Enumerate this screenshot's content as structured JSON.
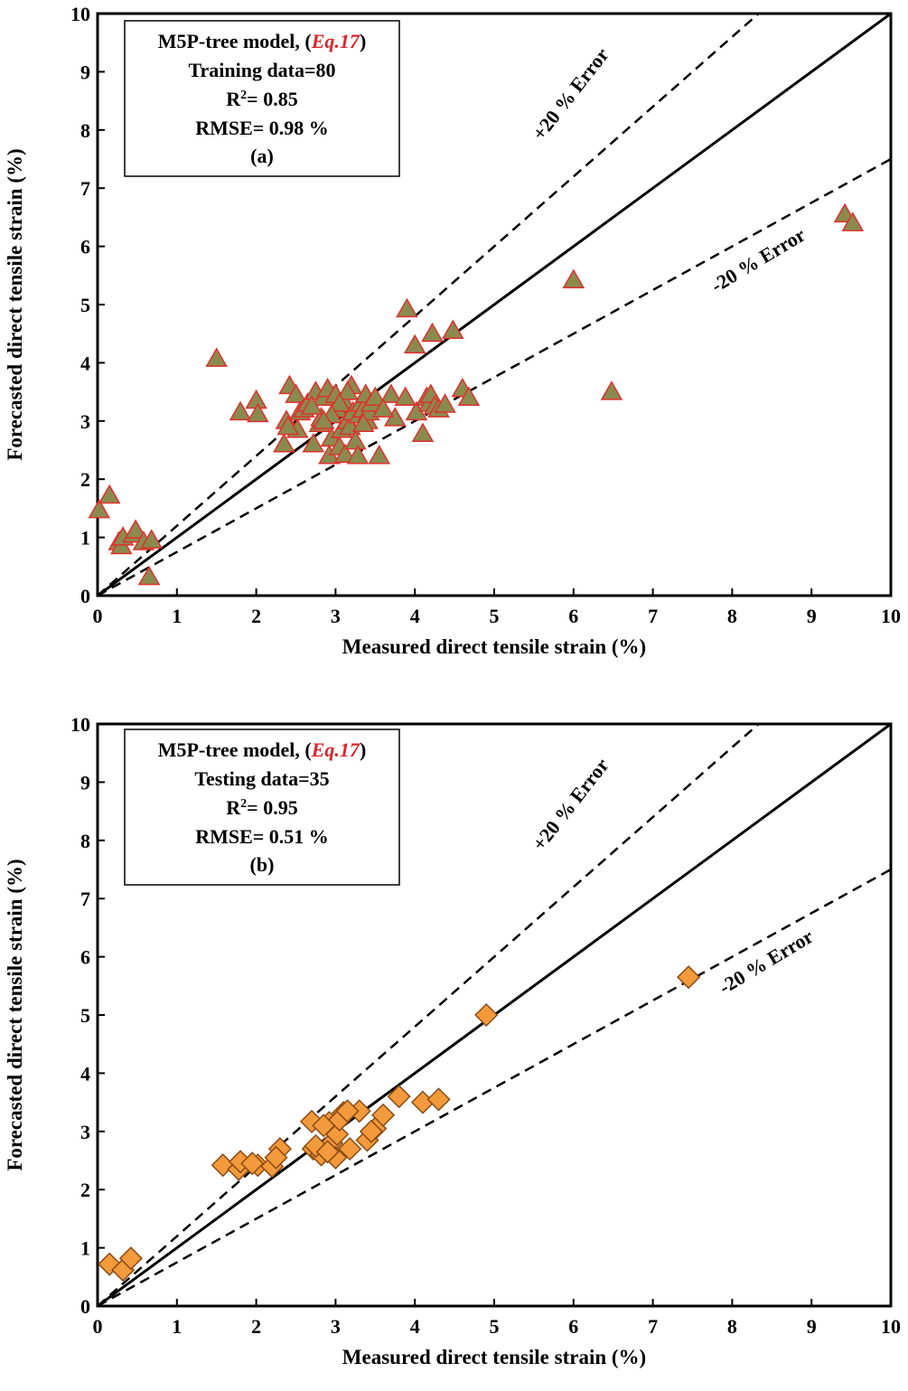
{
  "chart_data": [
    {
      "type": "scatter",
      "panel": "(a)",
      "xlabel": "Measured direct tensile strain (%)",
      "ylabel": "Forecasted direct tensile strain (%)",
      "xlim": [
        0,
        10
      ],
      "ylim": [
        0,
        10
      ],
      "xticks": [
        "0",
        "1",
        "2",
        "3",
        "4",
        "5",
        "6",
        "7",
        "8",
        "9",
        "10"
      ],
      "yticks": [
        "0",
        "1",
        "2",
        "3",
        "4",
        "5",
        "6",
        "7",
        "8",
        "9",
        "10"
      ],
      "legend": {
        "model": "M5P-tree model, (",
        "eq": "Eq.17",
        "close": ")",
        "data_label": "Training data=80",
        "r2_prefix": "R",
        "r2_sup": "2",
        "r2_value": "= 0.85",
        "rmse": "RMSE= 0.98 %",
        "panel": "(a)"
      },
      "lines": {
        "plus": "+20 % Error",
        "minus": "-20 % Error"
      },
      "marker": "triangle",
      "marker_fill": "#8b8a4e",
      "marker_stroke": "#e0302c",
      "points": [
        [
          0.02,
          1.47
        ],
        [
          0.15,
          1.72
        ],
        [
          0.27,
          0.92
        ],
        [
          0.3,
          0.85
        ],
        [
          0.32,
          1.0
        ],
        [
          0.45,
          1.05
        ],
        [
          0.48,
          1.12
        ],
        [
          0.58,
          0.92
        ],
        [
          0.68,
          0.95
        ],
        [
          0.65,
          0.32
        ],
        [
          1.5,
          4.07
        ],
        [
          1.8,
          3.15
        ],
        [
          2.0,
          3.35
        ],
        [
          2.02,
          3.12
        ],
        [
          2.35,
          2.6
        ],
        [
          2.38,
          3.0
        ],
        [
          2.42,
          3.6
        ],
        [
          2.5,
          3.45
        ],
        [
          2.52,
          2.85
        ],
        [
          2.55,
          3.15
        ],
        [
          2.6,
          3.2
        ],
        [
          2.65,
          3.3
        ],
        [
          2.72,
          2.6
        ],
        [
          2.75,
          3.5
        ],
        [
          2.8,
          2.95
        ],
        [
          2.82,
          3.05
        ],
        [
          2.85,
          3.4
        ],
        [
          2.9,
          3.55
        ],
        [
          2.92,
          2.4
        ],
        [
          2.95,
          2.7
        ],
        [
          3.0,
          3.45
        ],
        [
          3.02,
          3.2
        ],
        [
          3.05,
          2.55
        ],
        [
          3.08,
          2.85
        ],
        [
          3.1,
          3.35
        ],
        [
          3.12,
          2.42
        ],
        [
          3.15,
          3.0
        ],
        [
          3.18,
          2.9
        ],
        [
          3.2,
          3.6
        ],
        [
          3.22,
          3.15
        ],
        [
          3.25,
          2.65
        ],
        [
          3.28,
          2.4
        ],
        [
          3.3,
          3.1
        ],
        [
          3.32,
          3.3
        ],
        [
          3.35,
          3.2
        ],
        [
          3.38,
          3.45
        ],
        [
          3.4,
          3.0
        ],
        [
          3.42,
          3.15
        ],
        [
          3.45,
          3.3
        ],
        [
          3.5,
          3.4
        ],
        [
          3.55,
          2.4
        ],
        [
          3.7,
          3.45
        ],
        [
          3.75,
          3.05
        ],
        [
          3.88,
          3.4
        ],
        [
          3.9,
          4.92
        ],
        [
          4.0,
          4.3
        ],
        [
          4.02,
          3.15
        ],
        [
          4.1,
          2.78
        ],
        [
          4.15,
          3.4
        ],
        [
          4.18,
          3.3
        ],
        [
          4.2,
          3.45
        ],
        [
          4.22,
          4.5
        ],
        [
          4.25,
          3.25
        ],
        [
          4.3,
          3.2
        ],
        [
          4.38,
          3.28
        ],
        [
          4.48,
          4.55
        ],
        [
          4.6,
          3.55
        ],
        [
          4.68,
          3.4
        ],
        [
          6.0,
          5.42
        ],
        [
          6.48,
          3.5
        ],
        [
          9.42,
          6.55
        ],
        [
          9.52,
          6.4
        ],
        [
          3.6,
          3.2
        ],
        [
          2.4,
          2.9
        ],
        [
          3.15,
          3.5
        ],
        [
          2.7,
          3.25
        ],
        [
          3.05,
          3.3
        ],
        [
          2.95,
          3.1
        ],
        [
          3.35,
          2.95
        ],
        [
          2.85,
          3.0
        ]
      ]
    },
    {
      "type": "scatter",
      "panel": "(b)",
      "xlabel": "Measured direct tensile strain (%)",
      "ylabel": "Forecasted direct tensile strain (%)",
      "xlim": [
        0,
        10
      ],
      "ylim": [
        0,
        10
      ],
      "xticks": [
        "0",
        "1",
        "2",
        "3",
        "4",
        "5",
        "6",
        "7",
        "8",
        "9",
        "10"
      ],
      "yticks": [
        "0",
        "1",
        "2",
        "3",
        "4",
        "5",
        "6",
        "7",
        "8",
        "9",
        "10"
      ],
      "legend": {
        "model": "M5P-tree model, (",
        "eq": "Eq.17",
        "close": ")",
        "data_label": "Testing data=35",
        "r2_prefix": "R",
        "r2_sup": "2",
        "r2_value": "= 0.95",
        "rmse": "RMSE= 0.51 %",
        "panel": "(b)"
      },
      "lines": {
        "plus": "+20 % Error",
        "minus": "-20 % Error"
      },
      "marker": "diamond",
      "marker_fill": "#f39a3c",
      "marker_stroke": "#8a4a12",
      "points": [
        [
          0.15,
          0.72
        ],
        [
          0.32,
          0.62
        ],
        [
          0.42,
          0.82
        ],
        [
          1.58,
          2.42
        ],
        [
          1.78,
          2.35
        ],
        [
          1.8,
          2.48
        ],
        [
          2.02,
          2.42
        ],
        [
          2.2,
          2.4
        ],
        [
          2.3,
          2.7
        ],
        [
          2.7,
          3.17
        ],
        [
          2.72,
          2.7
        ],
        [
          2.82,
          2.6
        ],
        [
          2.92,
          3.15
        ],
        [
          2.95,
          2.8
        ],
        [
          3.0,
          2.55
        ],
        [
          3.02,
          2.95
        ],
        [
          3.1,
          3.32
        ],
        [
          3.18,
          2.7
        ],
        [
          3.3,
          3.35
        ],
        [
          3.4,
          2.85
        ],
        [
          3.5,
          3.05
        ],
        [
          3.6,
          3.28
        ],
        [
          3.8,
          3.6
        ],
        [
          4.1,
          3.5
        ],
        [
          4.3,
          3.55
        ],
        [
          4.9,
          5.0
        ],
        [
          7.45,
          5.65
        ],
        [
          2.85,
          3.1
        ],
        [
          3.05,
          3.2
        ],
        [
          2.75,
          2.75
        ],
        [
          3.45,
          3.0
        ],
        [
          2.25,
          2.55
        ],
        [
          1.95,
          2.45
        ],
        [
          3.15,
          3.35
        ],
        [
          2.9,
          2.65
        ]
      ]
    }
  ]
}
